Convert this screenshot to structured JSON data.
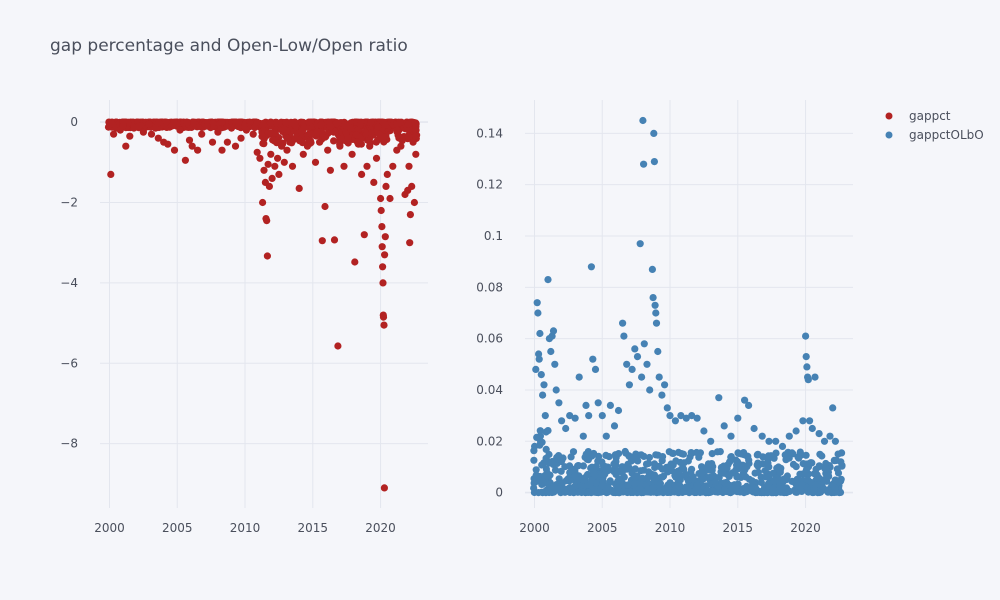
{
  "chart_data": [
    {
      "type": "scatter",
      "title": "gap percentage and Open-Low/Open ratio",
      "series_name": "gappct",
      "color": "#b22222",
      "xlim": [
        1999.3,
        2023.5
      ],
      "ylim": [
        -9.6,
        0.55
      ],
      "xticks": [
        2000,
        2005,
        2010,
        2015,
        2020
      ],
      "xtick_labels": [
        "2000",
        "2005",
        "2010",
        "2015",
        "2020"
      ],
      "yticks": [
        0,
        -2,
        -4,
        -6,
        -8
      ],
      "ytick_labels": [
        "0",
        "−2",
        "−4",
        "−6",
        "−8"
      ],
      "points": [
        [
          2000.1,
          -1.3
        ],
        [
          2000.2,
          -0.05
        ],
        [
          2000.3,
          -0.3
        ],
        [
          2000.5,
          -0.15
        ],
        [
          2000.8,
          -0.2
        ],
        [
          2001.0,
          -0.1
        ],
        [
          2001.2,
          -0.6
        ],
        [
          2001.5,
          -0.35
        ],
        [
          2001.8,
          -0.15
        ],
        [
          2002.2,
          -0.1
        ],
        [
          2002.5,
          -0.25
        ],
        [
          2002.9,
          -0.05
        ],
        [
          2003.1,
          -0.3
        ],
        [
          2003.4,
          -0.15
        ],
        [
          2003.6,
          -0.4
        ],
        [
          2004.0,
          -0.5
        ],
        [
          2004.3,
          -0.55
        ],
        [
          2004.6,
          -0.1
        ],
        [
          2004.8,
          -0.7
        ],
        [
          2005.2,
          -0.2
        ],
        [
          2005.6,
          -0.95
        ],
        [
          2005.9,
          -0.45
        ],
        [
          2006.1,
          -0.6
        ],
        [
          2006.5,
          -0.7
        ],
        [
          2006.8,
          -0.3
        ],
        [
          2007.2,
          -0.1
        ],
        [
          2007.6,
          -0.5
        ],
        [
          2008.0,
          -0.25
        ],
        [
          2008.3,
          -0.7
        ],
        [
          2008.7,
          -0.5
        ],
        [
          2009.0,
          -0.15
        ],
        [
          2009.3,
          -0.6
        ],
        [
          2009.7,
          -0.4
        ],
        [
          2010.1,
          -0.2
        ],
        [
          2010.6,
          -0.3
        ],
        [
          2010.9,
          -0.75
        ],
        [
          2011.1,
          -0.9
        ],
        [
          2011.3,
          -2.0
        ],
        [
          2011.4,
          -1.2
        ],
        [
          2011.5,
          -1.5
        ],
        [
          2011.55,
          -2.4
        ],
        [
          2011.6,
          -2.45
        ],
        [
          2011.65,
          -3.33
        ],
        [
          2011.7,
          -1.05
        ],
        [
          2011.8,
          -1.6
        ],
        [
          2011.9,
          -0.8
        ],
        [
          2012.0,
          -1.4
        ],
        [
          2012.2,
          -1.1
        ],
        [
          2012.4,
          -0.9
        ],
        [
          2012.5,
          -1.3
        ],
        [
          2012.7,
          -0.6
        ],
        [
          2012.9,
          -1.0
        ],
        [
          2013.1,
          -0.7
        ],
        [
          2013.3,
          -0.5
        ],
        [
          2013.5,
          -1.1
        ],
        [
          2013.7,
          -0.4
        ],
        [
          2014.0,
          -1.65
        ],
        [
          2014.3,
          -0.8
        ],
        [
          2014.6,
          -0.6
        ],
        [
          2014.9,
          -0.3
        ],
        [
          2015.2,
          -1.0
        ],
        [
          2015.5,
          -0.5
        ],
        [
          2015.7,
          -2.95
        ],
        [
          2015.9,
          -2.1
        ],
        [
          2016.1,
          -0.7
        ],
        [
          2016.3,
          -1.2
        ],
        [
          2016.6,
          -2.93
        ],
        [
          2016.85,
          -5.57
        ],
        [
          2017.0,
          -0.6
        ],
        [
          2017.3,
          -1.1
        ],
        [
          2017.6,
          -0.4
        ],
        [
          2017.9,
          -0.8
        ],
        [
          2018.1,
          -3.48
        ],
        [
          2018.3,
          -0.5
        ],
        [
          2018.6,
          -1.3
        ],
        [
          2018.8,
          -2.8
        ],
        [
          2019.0,
          -1.1
        ],
        [
          2019.2,
          -0.6
        ],
        [
          2019.5,
          -1.5
        ],
        [
          2019.7,
          -0.9
        ],
        [
          2019.9,
          -0.3
        ],
        [
          2020.0,
          -1.9
        ],
        [
          2020.05,
          -2.2
        ],
        [
          2020.1,
          -2.6
        ],
        [
          2020.12,
          -3.1
        ],
        [
          2020.15,
          -3.6
        ],
        [
          2020.18,
          -4.0
        ],
        [
          2020.2,
          -4.8
        ],
        [
          2020.22,
          -4.85
        ],
        [
          2020.25,
          -5.05
        ],
        [
          2020.28,
          -9.1
        ],
        [
          2020.3,
          -3.3
        ],
        [
          2020.35,
          -2.85
        ],
        [
          2020.4,
          -1.6
        ],
        [
          2020.5,
          -1.3
        ],
        [
          2020.7,
          -1.9
        ],
        [
          2020.9,
          -1.1
        ],
        [
          2021.2,
          -0.7
        ],
        [
          2021.5,
          -0.6
        ],
        [
          2021.8,
          -1.8
        ],
        [
          2022.0,
          -1.7
        ],
        [
          2022.1,
          -1.1
        ],
        [
          2022.15,
          -3.0
        ],
        [
          2022.2,
          -2.3
        ],
        [
          2022.3,
          -1.6
        ],
        [
          2022.4,
          -0.5
        ],
        [
          2022.5,
          -2.0
        ],
        [
          2022.6,
          -0.8
        ]
      ],
      "band": {
        "x_start": 1999.9,
        "x_end": 2022.7,
        "base": 0.0,
        "depth": 0.14,
        "dense_after": 2011.0,
        "dense_depth": 0.55
      }
    },
    {
      "type": "scatter",
      "series_name": "gappctOLbO",
      "color": "#4682b4",
      "xlim": [
        1999.3,
        2023.5
      ],
      "ylim": [
        -0.006,
        0.153
      ],
      "xticks": [
        2000,
        2005,
        2010,
        2015,
        2020
      ],
      "xtick_labels": [
        "2000",
        "2005",
        "2010",
        "2015",
        "2020"
      ],
      "yticks": [
        0,
        0.02,
        0.04,
        0.06,
        0.08,
        0.1,
        0.12,
        0.14
      ],
      "ytick_labels": [
        "0",
        "0.02",
        "0.04",
        "0.06",
        "0.08",
        "0.1",
        "0.12",
        "0.14"
      ],
      "points": [
        [
          2000.1,
          0.048
        ],
        [
          2000.2,
          0.074
        ],
        [
          2000.25,
          0.07
        ],
        [
          2000.3,
          0.054
        ],
        [
          2000.35,
          0.052
        ],
        [
          2000.4,
          0.062
        ],
        [
          2000.5,
          0.046
        ],
        [
          2000.6,
          0.038
        ],
        [
          2000.7,
          0.042
        ],
        [
          2000.8,
          0.03
        ],
        [
          2001.0,
          0.083
        ],
        [
          2001.1,
          0.06
        ],
        [
          2001.2,
          0.055
        ],
        [
          2001.3,
          0.061
        ],
        [
          2001.4,
          0.063
        ],
        [
          2001.5,
          0.05
        ],
        [
          2001.6,
          0.04
        ],
        [
          2001.8,
          0.035
        ],
        [
          2002.0,
          0.028
        ],
        [
          2002.3,
          0.025
        ],
        [
          2002.6,
          0.03
        ],
        [
          2003.0,
          0.029
        ],
        [
          2003.3,
          0.045
        ],
        [
          2003.6,
          0.022
        ],
        [
          2003.8,
          0.034
        ],
        [
          2004.0,
          0.03
        ],
        [
          2004.2,
          0.088
        ],
        [
          2004.3,
          0.052
        ],
        [
          2004.5,
          0.048
        ],
        [
          2004.7,
          0.035
        ],
        [
          2005.0,
          0.03
        ],
        [
          2005.3,
          0.022
        ],
        [
          2005.6,
          0.034
        ],
        [
          2005.9,
          0.026
        ],
        [
          2006.2,
          0.032
        ],
        [
          2006.5,
          0.066
        ],
        [
          2006.6,
          0.061
        ],
        [
          2006.8,
          0.05
        ],
        [
          2007.0,
          0.042
        ],
        [
          2007.2,
          0.048
        ],
        [
          2007.4,
          0.056
        ],
        [
          2007.6,
          0.053
        ],
        [
          2007.8,
          0.097
        ],
        [
          2007.9,
          0.045
        ],
        [
          2008.0,
          0.145
        ],
        [
          2008.05,
          0.128
        ],
        [
          2008.1,
          0.058
        ],
        [
          2008.3,
          0.05
        ],
        [
          2008.5,
          0.04
        ],
        [
          2008.7,
          0.087
        ],
        [
          2008.75,
          0.076
        ],
        [
          2008.8,
          0.14
        ],
        [
          2008.85,
          0.129
        ],
        [
          2008.9,
          0.073
        ],
        [
          2008.95,
          0.07
        ],
        [
          2009.0,
          0.066
        ],
        [
          2009.1,
          0.055
        ],
        [
          2009.2,
          0.045
        ],
        [
          2009.4,
          0.038
        ],
        [
          2009.6,
          0.042
        ],
        [
          2009.8,
          0.033
        ],
        [
          2010.0,
          0.03
        ],
        [
          2010.4,
          0.028
        ],
        [
          2010.8,
          0.03
        ],
        [
          2011.2,
          0.029
        ],
        [
          2011.6,
          0.03
        ],
        [
          2012.0,
          0.029
        ],
        [
          2012.5,
          0.024
        ],
        [
          2013.0,
          0.02
        ],
        [
          2013.6,
          0.037
        ],
        [
          2014.0,
          0.026
        ],
        [
          2014.5,
          0.022
        ],
        [
          2015.0,
          0.029
        ],
        [
          2015.5,
          0.036
        ],
        [
          2015.8,
          0.034
        ],
        [
          2016.2,
          0.025
        ],
        [
          2016.8,
          0.022
        ],
        [
          2017.3,
          0.02
        ],
        [
          2017.8,
          0.02
        ],
        [
          2018.3,
          0.018
        ],
        [
          2018.8,
          0.022
        ],
        [
          2019.3,
          0.024
        ],
        [
          2019.8,
          0.028
        ],
        [
          2020.0,
          0.061
        ],
        [
          2020.05,
          0.053
        ],
        [
          2020.1,
          0.049
        ],
        [
          2020.15,
          0.045
        ],
        [
          2020.2,
          0.044
        ],
        [
          2020.3,
          0.028
        ],
        [
          2020.5,
          0.025
        ],
        [
          2020.7,
          0.045
        ],
        [
          2021.0,
          0.023
        ],
        [
          2021.4,
          0.02
        ],
        [
          2021.8,
          0.022
        ],
        [
          2022.0,
          0.033
        ],
        [
          2022.2,
          0.02
        ],
        [
          2022.4,
          0.015
        ],
        [
          2022.6,
          0.012
        ]
      ],
      "band": {
        "x_start": 1999.9,
        "x_end": 2022.7,
        "base": 0.0,
        "depth": 0.016,
        "dense_before": 2001.0,
        "dense_depth": 0.025
      }
    }
  ],
  "legend": {
    "placement": "top-right",
    "items": [
      {
        "label": "gappct",
        "color": "#b22222"
      },
      {
        "label": "gappctOLbO",
        "color": "#4682b4"
      }
    ]
  }
}
